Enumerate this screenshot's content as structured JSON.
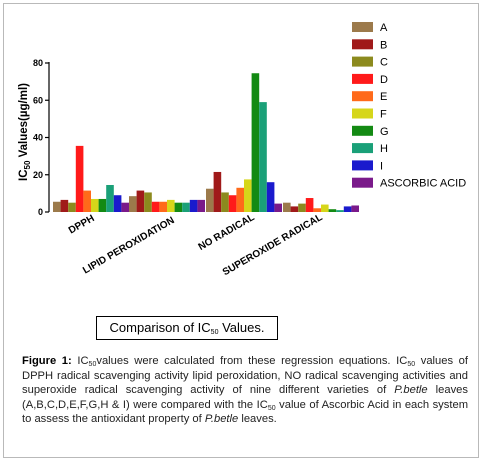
{
  "chart_data": {
    "type": "bar",
    "ylabel_main": "IC",
    "ylabel_sub": "50",
    "ylabel_rest": " Values(µg/ml)",
    "ylim": [
      0,
      80
    ],
    "yticks": [
      0,
      20,
      40,
      60,
      80
    ],
    "categories": [
      "DPPH",
      "LIPID PEROXIDATION",
      "NO RADICAL",
      "SUPEROXIDE RADICAL"
    ],
    "series": [
      {
        "name": "A",
        "color": "#9c7a4b",
        "values": [
          5.5,
          8.5,
          12.5,
          5.0
        ]
      },
      {
        "name": "B",
        "color": "#a01a1a",
        "values": [
          6.5,
          11.5,
          21.5,
          3.0
        ]
      },
      {
        "name": "C",
        "color": "#8c8a1e",
        "values": [
          5.0,
          10.5,
          10.5,
          4.5
        ]
      },
      {
        "name": "D",
        "color": "#ff1a1a",
        "values": [
          35.5,
          5.5,
          9.0,
          7.5
        ]
      },
      {
        "name": "E",
        "color": "#ff6a1a",
        "values": [
          11.5,
          5.5,
          13.0,
          2.0
        ]
      },
      {
        "name": "F",
        "color": "#d6d61a",
        "values": [
          7.0,
          6.5,
          17.5,
          4.0
        ]
      },
      {
        "name": "G",
        "color": "#138a13",
        "values": [
          7.0,
          5.0,
          74.5,
          1.5
        ]
      },
      {
        "name": "H",
        "color": "#1aa078",
        "values": [
          14.5,
          5.0,
          59.0,
          1.0
        ]
      },
      {
        "name": "I",
        "color": "#1a1acd",
        "values": [
          9.0,
          6.5,
          16.0,
          3.0
        ]
      },
      {
        "name": "ASCORBIC ACID",
        "color": "#7a1a8a",
        "values": [
          5.0,
          6.5,
          4.5,
          3.5
        ]
      }
    ]
  },
  "comparison_box": {
    "pre": "Comparison of IC",
    "sub": "50",
    "post": " Values."
  },
  "caption": {
    "label": "Figure 1:",
    "t1": " IC",
    "s1": "50",
    "t2": "values were calculated from these regression equations. IC",
    "s2": "50",
    "t3": " values of DPPH radical scavenging activity lipid peroxidation, NO radical scavenging activities and superoxide radical scavenging activity of nine different varieties of ",
    "i1": "P.betle",
    "t4": " leaves (A,B,C,D,E,F,G,H & I) were compared with the IC",
    "s3": "50",
    "t5": " value of Ascorbic Acid in each system to assess the antioxidant property of ",
    "i2": "P.betle",
    "t6": " leaves."
  }
}
